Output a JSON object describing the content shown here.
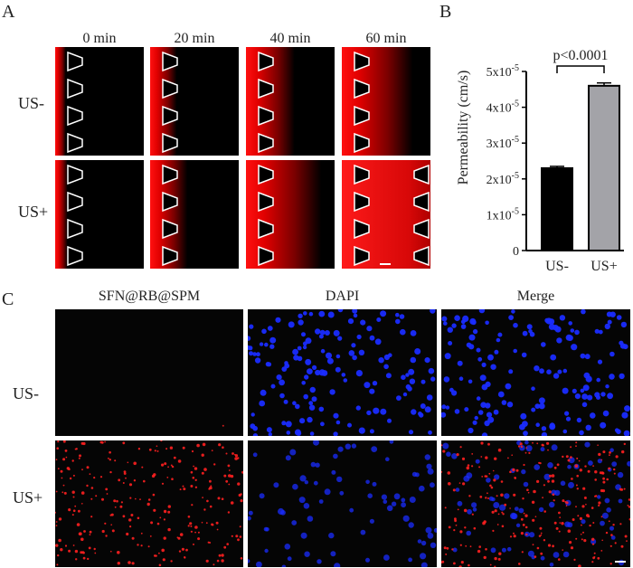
{
  "panels": {
    "a": {
      "letter": "A",
      "time_labels": [
        "0 min",
        "20 min",
        "40 min",
        "60 min"
      ],
      "row_labels": [
        "US-",
        "US+"
      ]
    },
    "b": {
      "letter": "B",
      "ylabel": "Permeability (cm/s)",
      "significance": "p<0.0001"
    },
    "c": {
      "letter": "C",
      "col_labels": [
        "SFN@RB@SPM",
        "DAPI",
        "Merge"
      ],
      "row_labels": [
        "US-",
        "US+"
      ]
    }
  },
  "chart_data": {
    "type": "bar",
    "categories": [
      "US-",
      "US+"
    ],
    "values": [
      2.3e-05,
      4.6e-05
    ],
    "errors": [
      5e-07,
      8e-07
    ],
    "ylim": [
      0,
      5e-05
    ],
    "yticks": [
      {
        "value": 0,
        "label": "0"
      },
      {
        "value": 1e-05,
        "label": "1x10"
      },
      {
        "value": 2e-05,
        "label": "2x10"
      },
      {
        "value": 3e-05,
        "label": "3x10"
      },
      {
        "value": 4e-05,
        "label": "4x10"
      },
      {
        "value": 5e-05,
        "label": "5x10"
      }
    ],
    "exponent": "-5",
    "bar_colors": [
      "#000000",
      "#a3a3a8"
    ],
    "annotation": "p<0.0001"
  }
}
